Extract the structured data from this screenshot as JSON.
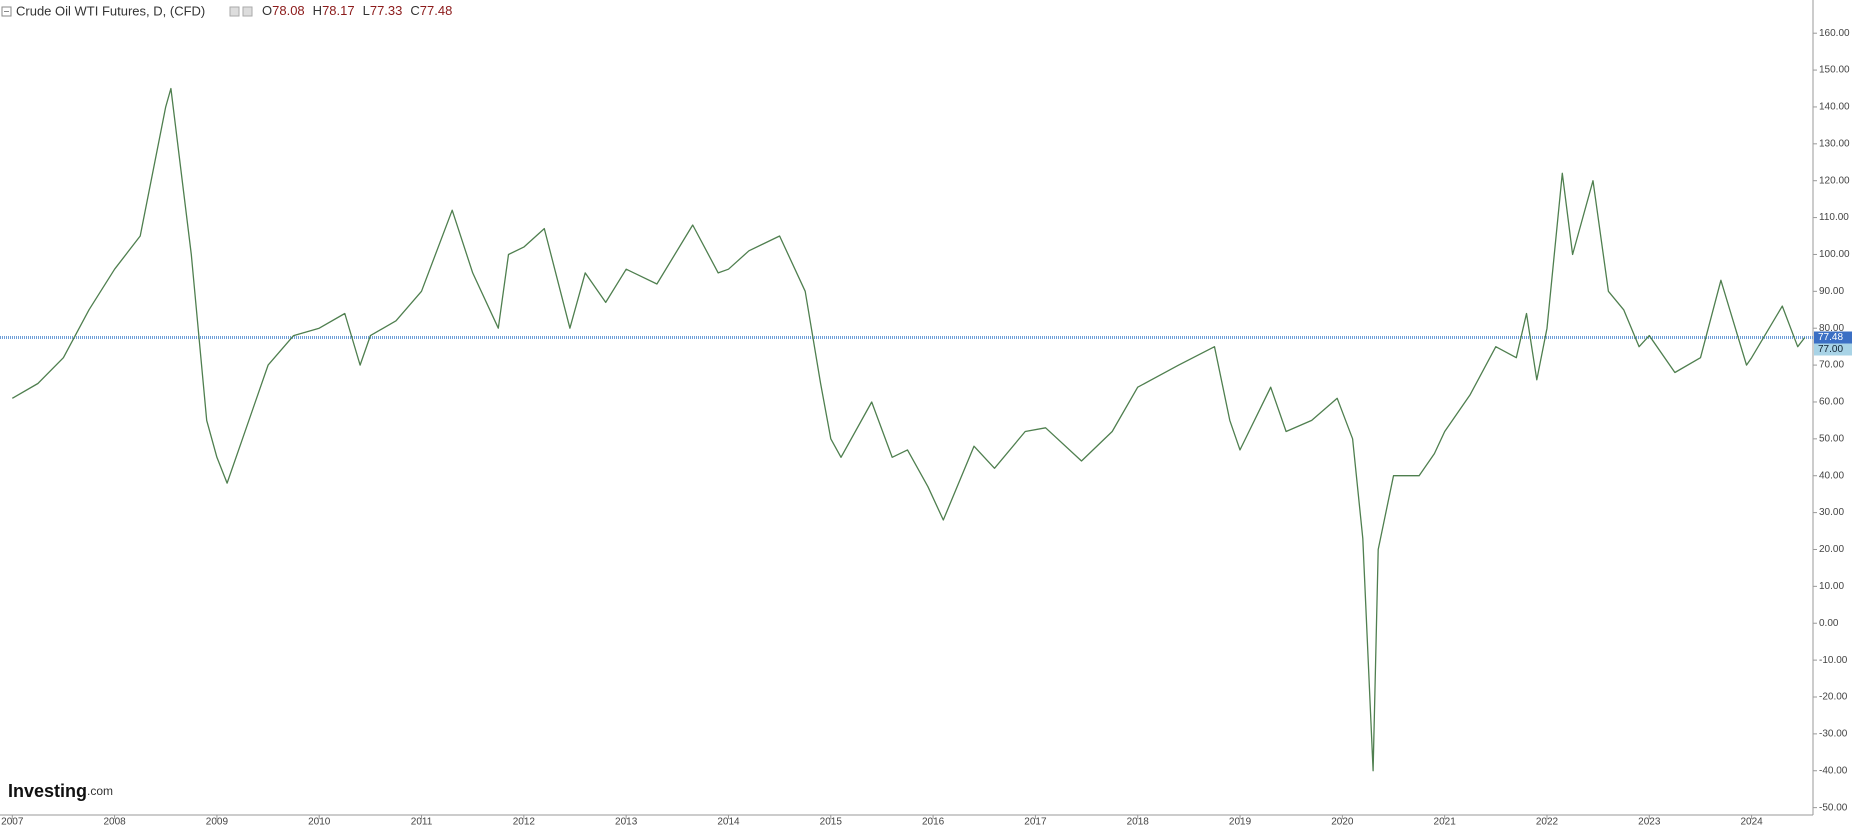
{
  "chart_data": {
    "type": "line",
    "title": "Crude Oil WTI Futures, D, (CFD)",
    "ohlc": [
      {
        "label": "O",
        "value": 78.08
      },
      {
        "label": "H",
        "value": 78.17
      },
      {
        "label": "L",
        "value": 77.33
      },
      {
        "label": "C",
        "value": 77.48
      }
    ],
    "color": "#4f7f4f",
    "x": [
      2007.0,
      2007.25,
      2007.5,
      2007.75,
      2008.0,
      2008.25,
      2008.5,
      2008.55,
      2008.75,
      2008.9,
      2009.0,
      2009.1,
      2009.25,
      2009.5,
      2009.75,
      2010.0,
      2010.25,
      2010.4,
      2010.5,
      2010.75,
      2011.0,
      2011.3,
      2011.5,
      2011.75,
      2011.85,
      2012.0,
      2012.2,
      2012.45,
      2012.6,
      2012.8,
      2013.0,
      2013.3,
      2013.65,
      2013.9,
      2014.0,
      2014.2,
      2014.5,
      2014.75,
      2014.9,
      2015.0,
      2015.1,
      2015.4,
      2015.6,
      2015.75,
      2015.95,
      2016.1,
      2016.4,
      2016.6,
      2016.9,
      2017.1,
      2017.45,
      2017.75,
      2018.0,
      2018.4,
      2018.75,
      2018.9,
      2019.0,
      2019.3,
      2019.45,
      2019.7,
      2019.95,
      2020.1,
      2020.2,
      2020.3,
      2020.35,
      2020.5,
      2020.75,
      2020.9,
      2021.0,
      2021.25,
      2021.5,
      2021.7,
      2021.8,
      2021.9,
      2022.0,
      2022.15,
      2022.25,
      2022.45,
      2022.6,
      2022.75,
      2022.9,
      2023.0,
      2023.25,
      2023.5,
      2023.7,
      2023.95,
      2024.0,
      2024.3,
      2024.45,
      2024.52
    ],
    "values": [
      61,
      65,
      72,
      85,
      96,
      105,
      140,
      145,
      100,
      55,
      45,
      38,
      50,
      70,
      78,
      80,
      84,
      70,
      78,
      82,
      90,
      112,
      95,
      80,
      100,
      102,
      107,
      80,
      95,
      87,
      96,
      92,
      108,
      95,
      96,
      101,
      105,
      90,
      65,
      50,
      45,
      60,
      45,
      47,
      37,
      28,
      48,
      42,
      52,
      53,
      44,
      52,
      64,
      70,
      75,
      55,
      47,
      64,
      52,
      55,
      61,
      50,
      23,
      -40,
      20,
      40,
      40,
      46,
      52,
      62,
      75,
      72,
      84,
      66,
      80,
      122,
      100,
      120,
      90,
      85,
      75,
      78,
      68,
      72,
      93,
      70,
      72,
      86,
      75,
      77.48
    ],
    "xlim": [
      2006.88,
      2024.6
    ],
    "xticks": [
      2007,
      2008,
      2009,
      2010,
      2011,
      2012,
      2013,
      2014,
      2015,
      2016,
      2017,
      2018,
      2019,
      2020,
      2021,
      2022,
      2023,
      2024
    ],
    "ylim": [
      -52,
      169
    ],
    "yticks": [
      {
        "value": -50,
        "label": "-50.00"
      },
      {
        "value": -40,
        "label": "-40.00"
      },
      {
        "value": -30,
        "label": "-30.00"
      },
      {
        "value": -20,
        "label": "-20.00"
      },
      {
        "value": -10,
        "label": "-10.00"
      },
      {
        "value": 0,
        "label": "0.00"
      },
      {
        "value": 10,
        "label": "10.00"
      },
      {
        "value": 20,
        "label": "20.00"
      },
      {
        "value": 30,
        "label": "30.00"
      },
      {
        "value": 40,
        "label": "40.00"
      },
      {
        "value": 50,
        "label": "50.00"
      },
      {
        "value": 60,
        "label": "60.00"
      },
      {
        "value": 70,
        "label": "70.00"
      },
      {
        "value": 80,
        "label": "80.00"
      },
      {
        "value": 90,
        "label": "90.00"
      },
      {
        "value": 100,
        "label": "100.00"
      },
      {
        "value": 110,
        "label": "110.00"
      },
      {
        "value": 120,
        "label": "120.00"
      },
      {
        "value": 130,
        "label": "130.00"
      },
      {
        "value": 140,
        "label": "140.00"
      },
      {
        "value": 150,
        "label": "150.00"
      },
      {
        "value": 160,
        "label": "160.00"
      }
    ],
    "price_line": {
      "value": 77.48,
      "color": "#6f9fd8"
    },
    "price_labels": [
      {
        "value": 77.48,
        "label": "77.48",
        "color": "#3b6fc4"
      },
      {
        "value": 77.0,
        "label": "77.00",
        "color": "#a8d3e6"
      }
    ],
    "logo": {
      "name": "Investing",
      "suffix": ".com"
    }
  }
}
